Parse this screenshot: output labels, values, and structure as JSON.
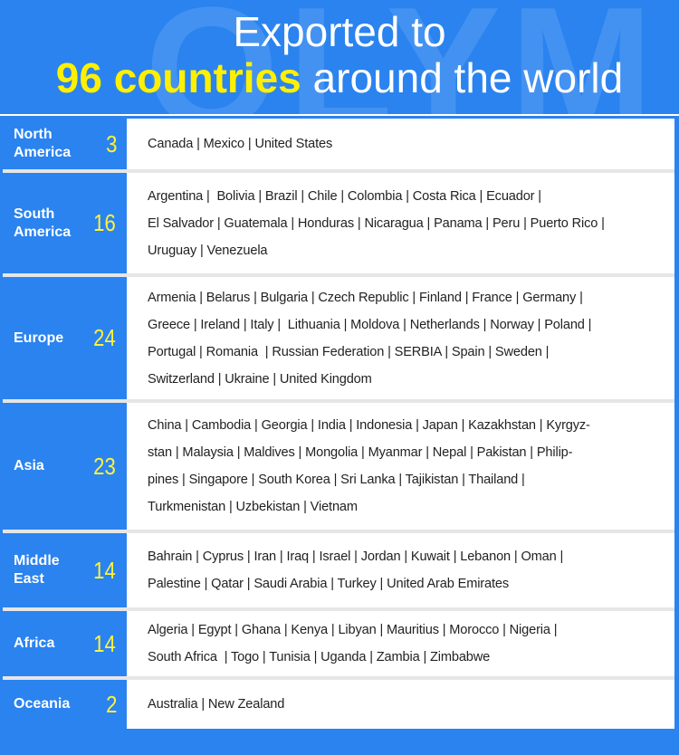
{
  "header": {
    "watermark": "OLYM",
    "line1": "Exported to",
    "highlight": "96 countries",
    "line2_rest": " around the world"
  },
  "colors": {
    "primary": "#2a83ef",
    "highlight": "#fff000",
    "separator": "#e6e6e6"
  },
  "regions": [
    {
      "name": "North America",
      "count": "3",
      "lines": [
        "Canada | Mexico | United States"
      ]
    },
    {
      "name": "South America",
      "count": "16",
      "lines": [
        "Argentina |  Bolivia | Brazil | Chile | Colombia | Costa Rica | Ecuador |",
        "El Salvador | Guatemala | Honduras | Nicaragua | Panama | Peru | Puerto Rico |",
        "Uruguay | Venezuela"
      ]
    },
    {
      "name": "Europe",
      "count": "24",
      "lines": [
        "Armenia | Belarus | Bulgaria | Czech Republic | Finland | France | Germany |",
        "Greece | Ireland | Italy |  Lithuania | Moldova | Netherlands | Norway | Poland |",
        "Portugal | Romania  | Russian Federation | SERBIA | Spain | Sweden |",
        "Switzerland | Ukraine | United Kingdom"
      ]
    },
    {
      "name": "Asia",
      "count": "23",
      "lines": [
        "China | Cambodia | Georgia | India | Indonesia | Japan | Kazakhstan | Kyrgyz-",
        "stan | Malaysia | Maldives | Mongolia | Myanmar | Nepal | Pakistan | Philip-",
        "pines | Singapore | South Korea | Sri Lanka | Tajikistan | Thailand |",
        "Turkmenistan | Uzbekistan | Vietnam"
      ]
    },
    {
      "name": "Middle East",
      "count": "14",
      "lines": [
        "Bahrain | Cyprus | Iran | Iraq | Israel | Jordan | Kuwait | Lebanon | Oman |",
        "Palestine | Qatar | Saudi Arabia | Turkey | United Arab Emirates"
      ]
    },
    {
      "name": "Africa",
      "count": "14",
      "lines": [
        "Algeria | Egypt | Ghana | Kenya | Libyan | Mauritius | Morocco | Nigeria |",
        "South Africa  | Togo | Tunisia | Uganda | Zambia | Zimbabwe"
      ]
    },
    {
      "name": "Oceania",
      "count": "2",
      "lines": [
        "Australia | New Zealand"
      ]
    }
  ]
}
